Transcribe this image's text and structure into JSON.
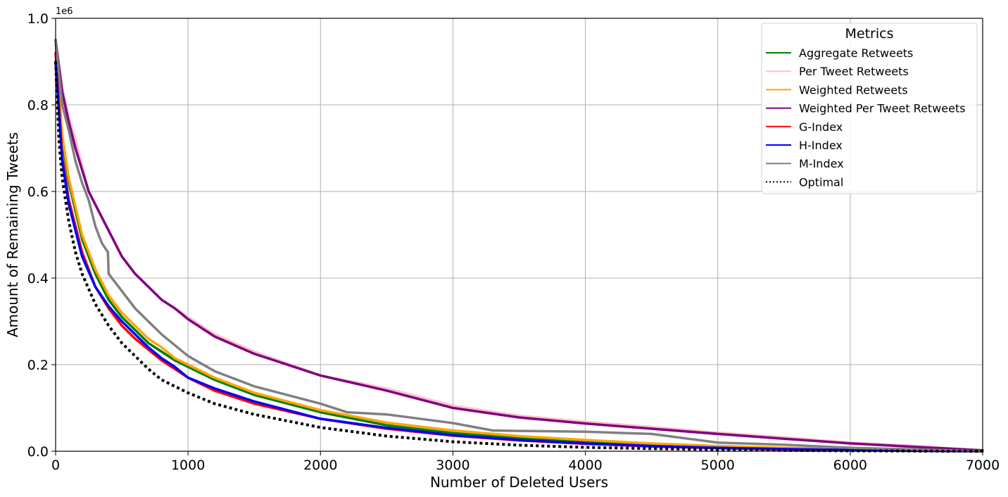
{
  "chart_data": {
    "type": "line",
    "title": "",
    "xlabel": "Number of Deleted Users",
    "ylabel": "Amount of Remaining Tweets",
    "y_scale_note": "1e6",
    "xlim": [
      0,
      7000
    ],
    "ylim": [
      0,
      1.0
    ],
    "x_ticks": [
      0,
      1000,
      2000,
      3000,
      4000,
      5000,
      6000,
      7000
    ],
    "x_tick_labels": [
      "0",
      "1000",
      "2000",
      "3000",
      "4000",
      "5000",
      "6000",
      "7000"
    ],
    "y_ticks": [
      0.0,
      0.2,
      0.4,
      0.6,
      0.8,
      1.0
    ],
    "y_tick_labels": [
      "0.0",
      "0.2",
      "0.4",
      "0.6",
      "0.8",
      "1.0"
    ],
    "grid": true,
    "legend": {
      "title": "Metrics",
      "placement": "top-right"
    },
    "series": [
      {
        "name": "Aggregate Retweets",
        "color": "#008000",
        "dash": "solid",
        "x": [
          0,
          50,
          100,
          200,
          300,
          400,
          500,
          600,
          700,
          800,
          900,
          1000,
          1200,
          1500,
          2000,
          2500,
          3000,
          3500,
          4000,
          4500,
          5000,
          5500,
          6000,
          6500,
          7000
        ],
        "y": [
          0.95,
          0.72,
          0.62,
          0.49,
          0.41,
          0.35,
          0.31,
          0.28,
          0.25,
          0.23,
          0.21,
          0.195,
          0.165,
          0.13,
          0.09,
          0.06,
          0.042,
          0.03,
          0.022,
          0.015,
          0.01,
          0.006,
          0.004,
          0.002,
          0.0
        ]
      },
      {
        "name": "Per Tweet Retweets",
        "color": "#ffc0cb",
        "dash": "solid",
        "x": [
          0,
          50,
          100,
          150,
          200,
          250,
          300,
          400,
          500,
          600,
          700,
          800,
          900,
          1000,
          1200,
          1500,
          2000,
          2500,
          3000,
          3500,
          4000,
          4500,
          5000,
          5500,
          6000,
          6500,
          7000
        ],
        "y": [
          0.95,
          0.84,
          0.77,
          0.72,
          0.66,
          0.6,
          0.57,
          0.51,
          0.45,
          0.41,
          0.38,
          0.35,
          0.33,
          0.31,
          0.27,
          0.23,
          0.175,
          0.145,
          0.105,
          0.082,
          0.068,
          0.056,
          0.043,
          0.032,
          0.02,
          0.012,
          0.002
        ]
      },
      {
        "name": "Weighted Retweets",
        "color": "#ffa500",
        "dash": "solid",
        "x": [
          0,
          50,
          100,
          200,
          300,
          400,
          500,
          600,
          700,
          800,
          900,
          1000,
          1200,
          1500,
          2000,
          2500,
          3000,
          3500,
          4000,
          4500,
          5000,
          5500,
          6000,
          6500,
          7000
        ],
        "y": [
          0.95,
          0.73,
          0.63,
          0.5,
          0.42,
          0.36,
          0.32,
          0.29,
          0.26,
          0.24,
          0.215,
          0.2,
          0.17,
          0.135,
          0.095,
          0.066,
          0.048,
          0.035,
          0.026,
          0.018,
          0.012,
          0.008,
          0.005,
          0.003,
          0.0
        ]
      },
      {
        "name": "Weighted Per Tweet Retweets",
        "color": "#800080",
        "dash": "solid",
        "x": [
          0,
          50,
          100,
          150,
          200,
          250,
          300,
          400,
          500,
          600,
          700,
          800,
          900,
          1000,
          1200,
          1500,
          2000,
          2500,
          3000,
          3500,
          4000,
          4500,
          5000,
          5500,
          6000,
          6500,
          7000
        ],
        "y": [
          0.95,
          0.83,
          0.76,
          0.7,
          0.65,
          0.6,
          0.57,
          0.51,
          0.45,
          0.41,
          0.38,
          0.35,
          0.33,
          0.305,
          0.265,
          0.225,
          0.175,
          0.14,
          0.1,
          0.078,
          0.064,
          0.052,
          0.04,
          0.029,
          0.018,
          0.01,
          0.002
        ]
      },
      {
        "name": "G-Index",
        "color": "#ff0000",
        "dash": "solid",
        "x": [
          0,
          50,
          100,
          200,
          300,
          400,
          500,
          600,
          700,
          800,
          900,
          1000,
          1200,
          1500,
          2000,
          2500,
          3000,
          3500,
          4000,
          4500,
          5000,
          5500,
          6000,
          6500,
          7000
        ],
        "y": [
          0.92,
          0.68,
          0.58,
          0.46,
          0.38,
          0.33,
          0.29,
          0.26,
          0.235,
          0.21,
          0.19,
          0.17,
          0.14,
          0.11,
          0.075,
          0.052,
          0.036,
          0.025,
          0.017,
          0.011,
          0.007,
          0.004,
          0.002,
          0.001,
          0.0
        ]
      },
      {
        "name": "H-Index",
        "color": "#0000ff",
        "dash": "solid",
        "x": [
          0,
          50,
          100,
          200,
          300,
          400,
          500,
          600,
          700,
          800,
          900,
          1000,
          1200,
          1500,
          2000,
          2500,
          3000,
          3500,
          4000,
          4500,
          5000,
          5500,
          6000,
          6500,
          7000
        ],
        "y": [
          0.9,
          0.67,
          0.57,
          0.45,
          0.38,
          0.335,
          0.3,
          0.27,
          0.24,
          0.215,
          0.195,
          0.17,
          0.145,
          0.115,
          0.075,
          0.054,
          0.037,
          0.026,
          0.018,
          0.012,
          0.008,
          0.005,
          0.003,
          0.001,
          0.0
        ]
      },
      {
        "name": "M-Index",
        "color": "#808080",
        "dash": "solid",
        "x": [
          0,
          50,
          100,
          150,
          200,
          250,
          300,
          350,
          395,
          400,
          500,
          600,
          700,
          800,
          900,
          1000,
          1200,
          1500,
          2000,
          2200,
          2500,
          3000,
          3300,
          3500,
          4000,
          4500,
          5000,
          5500,
          6000,
          6500,
          7000
        ],
        "y": [
          0.95,
          0.8,
          0.74,
          0.67,
          0.62,
          0.58,
          0.52,
          0.48,
          0.46,
          0.41,
          0.37,
          0.33,
          0.3,
          0.27,
          0.245,
          0.22,
          0.185,
          0.15,
          0.11,
          0.09,
          0.085,
          0.065,
          0.048,
          0.047,
          0.045,
          0.04,
          0.02,
          0.015,
          0.008,
          0.004,
          0.0
        ]
      },
      {
        "name": "Optimal",
        "color": "#000000",
        "dash": "dotted",
        "x": [
          0,
          25,
          50,
          100,
          150,
          200,
          300,
          400,
          500,
          600,
          700,
          800,
          900,
          1000,
          1200,
          1500,
          2000,
          2500,
          3000,
          3500,
          4000,
          4500,
          5000,
          5500,
          6000,
          6500,
          7000
        ],
        "y": [
          0.9,
          0.72,
          0.63,
          0.53,
          0.46,
          0.41,
          0.34,
          0.29,
          0.25,
          0.22,
          0.19,
          0.165,
          0.15,
          0.135,
          0.11,
          0.085,
          0.055,
          0.035,
          0.022,
          0.014,
          0.009,
          0.006,
          0.004,
          0.002,
          0.001,
          0.0005,
          0.0
        ]
      }
    ]
  }
}
